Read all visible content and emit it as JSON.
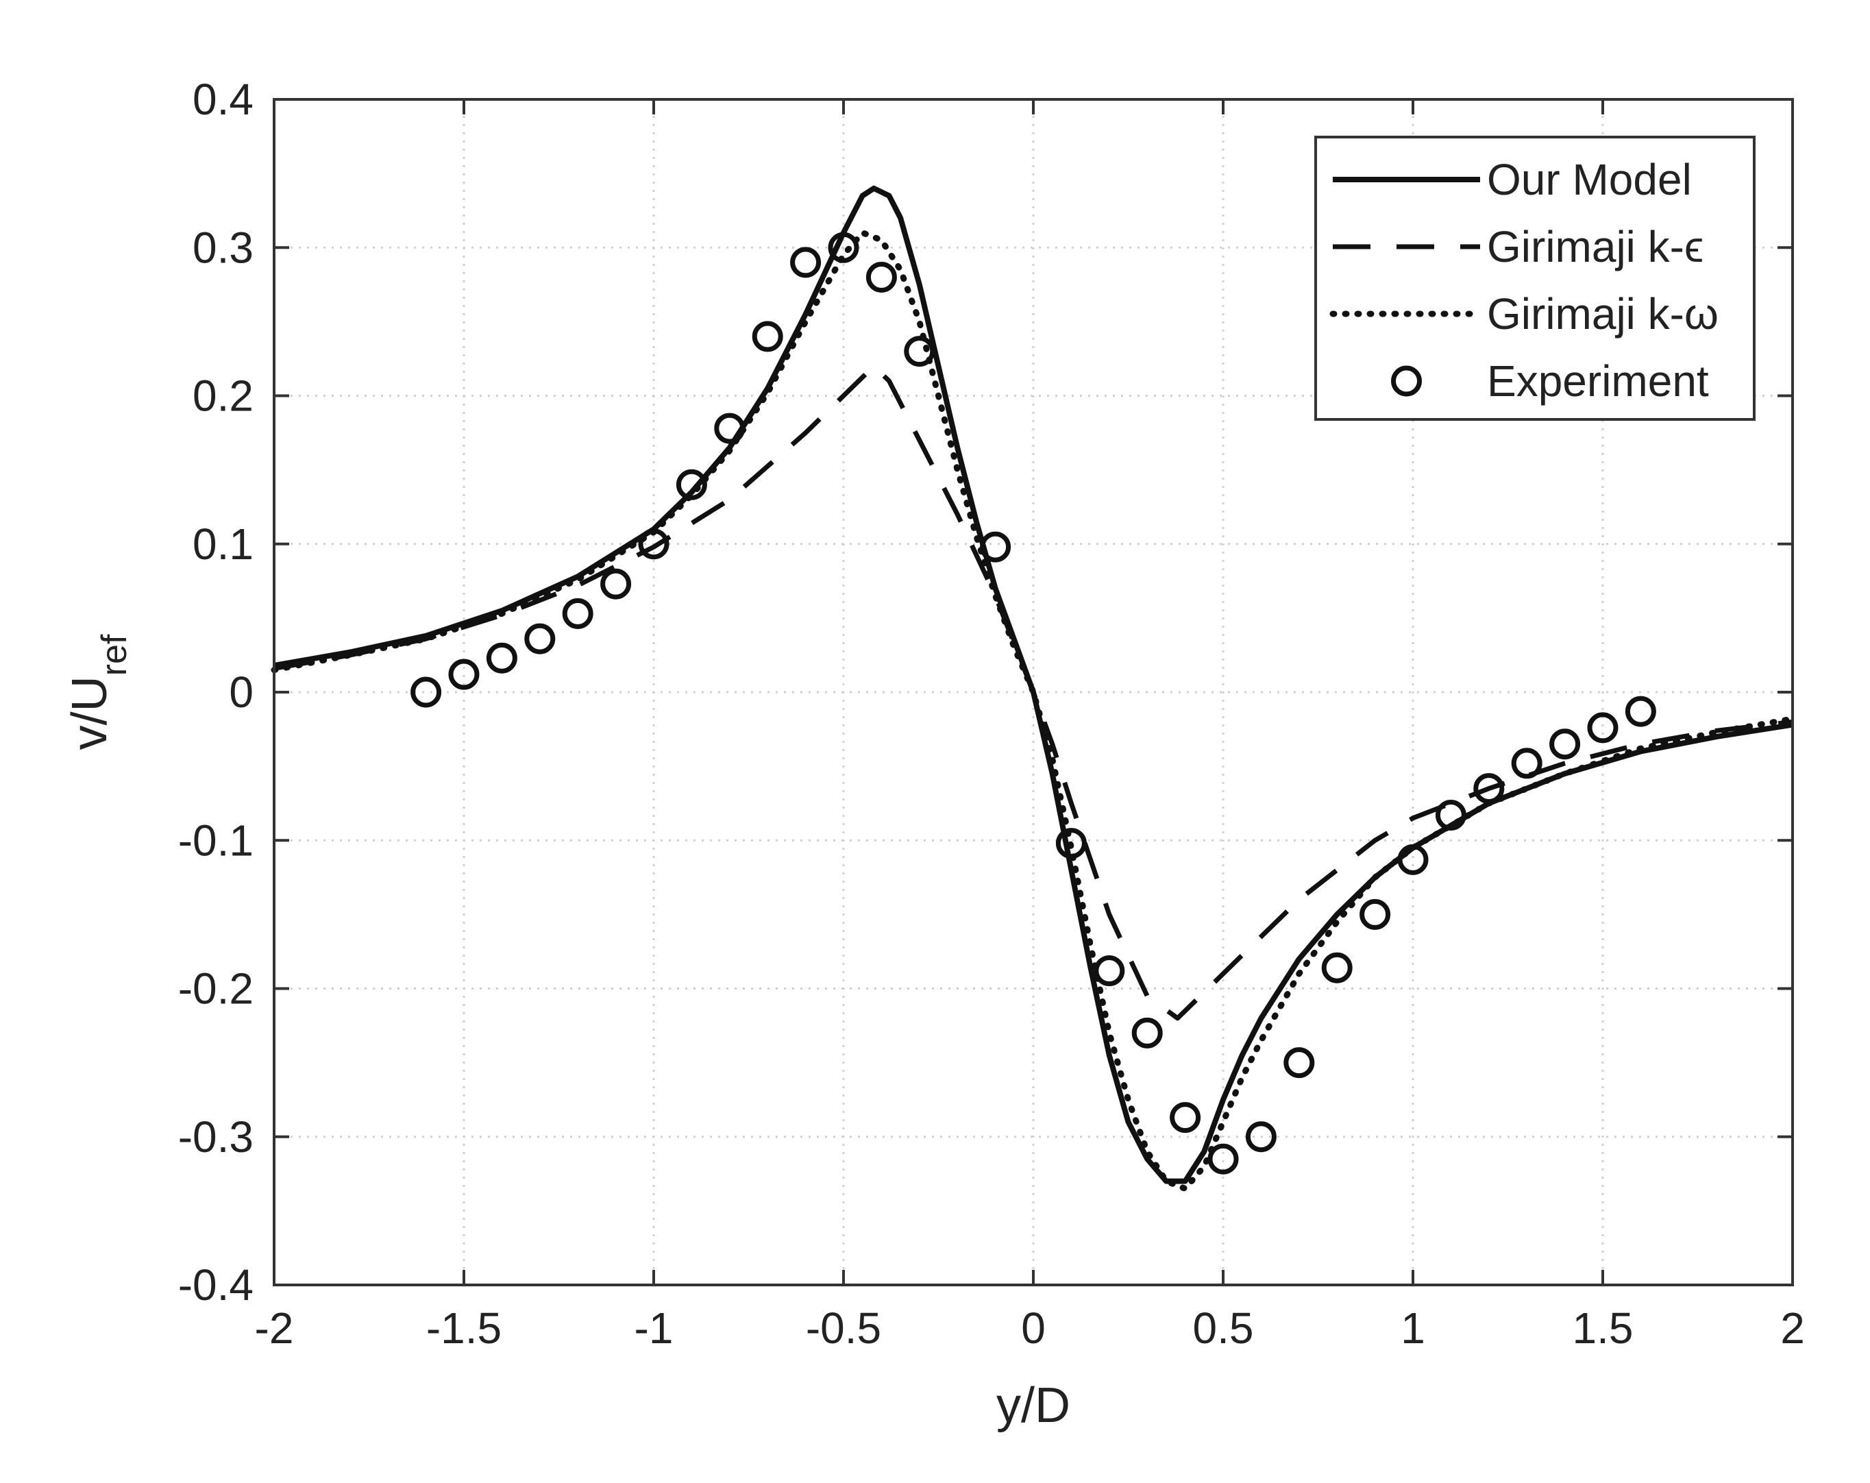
{
  "chart_data": {
    "type": "line",
    "title": "",
    "xlabel": "y/D",
    "ylabel": {
      "base": "v/U",
      "sub": "ref"
    },
    "xlim": [
      -2,
      2
    ],
    "ylim": [
      -0.4,
      0.4
    ],
    "xticks": [
      -2,
      -1.5,
      -1,
      -0.5,
      0,
      0.5,
      1,
      1.5,
      2
    ],
    "yticks": [
      -0.4,
      -0.3,
      -0.2,
      -0.1,
      0,
      0.1,
      0.2,
      0.3,
      0.4
    ],
    "xtick_labels": [
      "-2",
      "-1.5",
      "-1",
      "-0.5",
      "0",
      "0.5",
      "1",
      "1.5",
      "2"
    ],
    "ytick_labels": [
      "-0.4",
      "-0.3",
      "-0.2",
      "-0.1",
      "0",
      "0.1",
      "0.2",
      "0.3",
      "0.4"
    ],
    "grid": true,
    "legend_position": "top-right",
    "series": [
      {
        "name": "Our Model",
        "style": "solid",
        "x": [
          -2.0,
          -1.8,
          -1.6,
          -1.4,
          -1.2,
          -1.0,
          -0.9,
          -0.8,
          -0.7,
          -0.6,
          -0.5,
          -0.45,
          -0.42,
          -0.38,
          -0.35,
          -0.3,
          -0.25,
          -0.2,
          -0.15,
          -0.1,
          -0.05,
          0.0,
          0.05,
          0.1,
          0.15,
          0.2,
          0.25,
          0.3,
          0.35,
          0.4,
          0.45,
          0.5,
          0.55,
          0.6,
          0.7,
          0.8,
          0.9,
          1.0,
          1.2,
          1.4,
          1.6,
          1.8,
          2.0
        ],
        "y": [
          0.018,
          0.027,
          0.038,
          0.055,
          0.078,
          0.11,
          0.135,
          0.165,
          0.205,
          0.255,
          0.31,
          0.335,
          0.34,
          0.335,
          0.32,
          0.275,
          0.22,
          0.165,
          0.115,
          0.07,
          0.035,
          0.0,
          -0.055,
          -0.12,
          -0.185,
          -0.245,
          -0.29,
          -0.315,
          -0.33,
          -0.33,
          -0.31,
          -0.275,
          -0.245,
          -0.22,
          -0.18,
          -0.15,
          -0.125,
          -0.105,
          -0.075,
          -0.055,
          -0.04,
          -0.03,
          -0.022
        ]
      },
      {
        "name": "Girimaji k-ϵ",
        "style": "dashed",
        "x": [
          -2.0,
          -1.8,
          -1.6,
          -1.4,
          -1.2,
          -1.0,
          -0.8,
          -0.6,
          -0.5,
          -0.42,
          -0.38,
          -0.3,
          -0.2,
          -0.1,
          0.0,
          0.05,
          0.1,
          0.2,
          0.3,
          0.38,
          0.42,
          0.5,
          0.6,
          0.7,
          0.8,
          0.9,
          1.0,
          1.2,
          1.4,
          1.6,
          1.8,
          2.0
        ],
        "y": [
          0.016,
          0.025,
          0.036,
          0.052,
          0.072,
          0.098,
          0.13,
          0.175,
          0.2,
          0.22,
          0.21,
          0.17,
          0.12,
          0.065,
          0.0,
          -0.035,
          -0.075,
          -0.15,
          -0.205,
          -0.22,
          -0.21,
          -0.19,
          -0.165,
          -0.14,
          -0.12,
          -0.1,
          -0.085,
          -0.065,
          -0.048,
          -0.035,
          -0.026,
          -0.02
        ]
      },
      {
        "name": "Girimaji k-ω",
        "style": "dotted",
        "x": [
          -2.0,
          -1.8,
          -1.6,
          -1.4,
          -1.2,
          -1.0,
          -0.9,
          -0.8,
          -0.7,
          -0.6,
          -0.5,
          -0.45,
          -0.4,
          -0.35,
          -0.3,
          -0.25,
          -0.2,
          -0.15,
          -0.1,
          -0.05,
          0.0,
          0.05,
          0.1,
          0.15,
          0.2,
          0.25,
          0.3,
          0.35,
          0.4,
          0.45,
          0.5,
          0.55,
          0.6,
          0.7,
          0.8,
          0.9,
          1.0,
          1.2,
          1.4,
          1.6,
          1.8,
          2.0
        ],
        "y": [
          0.015,
          0.025,
          0.036,
          0.053,
          0.076,
          0.108,
          0.133,
          0.163,
          0.202,
          0.25,
          0.295,
          0.31,
          0.305,
          0.285,
          0.25,
          0.2,
          0.15,
          0.105,
          0.065,
          0.03,
          0.0,
          -0.045,
          -0.105,
          -0.17,
          -0.23,
          -0.275,
          -0.31,
          -0.33,
          -0.335,
          -0.32,
          -0.29,
          -0.26,
          -0.235,
          -0.19,
          -0.155,
          -0.125,
          -0.105,
          -0.075,
          -0.055,
          -0.038,
          -0.027,
          -0.018
        ]
      },
      {
        "name": "Experiment",
        "style": "markers",
        "x": [
          -1.6,
          -1.5,
          -1.4,
          -1.3,
          -1.2,
          -1.1,
          -1.0,
          -0.9,
          -0.8,
          -0.7,
          -0.6,
          -0.5,
          -0.4,
          -0.3,
          -0.1,
          0.1,
          0.2,
          0.3,
          0.4,
          0.5,
          0.6,
          0.7,
          0.8,
          0.9,
          1.0,
          1.1,
          1.2,
          1.3,
          1.4,
          1.5,
          1.6
        ],
        "y": [
          0.0,
          0.012,
          0.023,
          0.036,
          0.053,
          0.073,
          0.1,
          0.14,
          0.178,
          0.24,
          0.29,
          0.3,
          0.28,
          0.23,
          0.098,
          -0.102,
          -0.188,
          -0.23,
          -0.287,
          -0.315,
          -0.3,
          -0.25,
          -0.186,
          -0.15,
          -0.113,
          -0.083,
          -0.065,
          -0.048,
          -0.035,
          -0.024,
          -0.013
        ]
      }
    ]
  }
}
